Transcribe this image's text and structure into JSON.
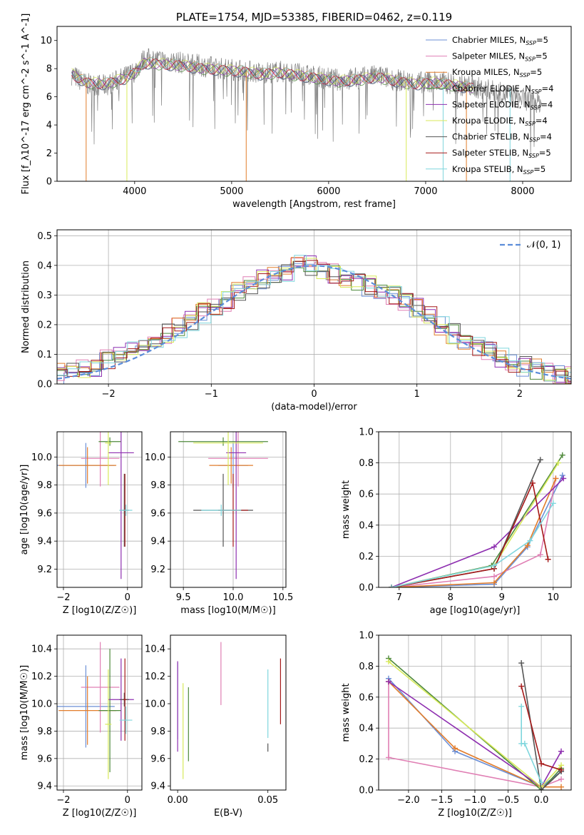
{
  "colors": {
    "chabrier_miles": "#6b8fd6",
    "salpeter_miles": "#e07fb4",
    "kroupa_miles": "#e27d2b",
    "chabrier_elodie": "#4f8a3c",
    "salpeter_elodie": "#8e2fb0",
    "kroupa_elodie": "#d8ea5a",
    "chabrier_stelib": "#555555",
    "salpeter_stelib": "#a51919",
    "kroupa_stelib": "#7fd6dd",
    "observed_spectrum": "#808080",
    "gaussian": "#5b8dd9",
    "grid": "#b0b0b0"
  },
  "chart_data": [
    {
      "id": "spectrum",
      "type": "line",
      "title": "PLATE=1754, MJD=53385, FIBERID=0462, z=0.119",
      "xlabel": "wavelength [Angstrom, rest frame]",
      "ylabel": "Flux [f_λ10^-17 erg cm^-2 s^-1 A^-1]",
      "xlim": [
        3200,
        8500
      ],
      "ylim": [
        0,
        11
      ],
      "xticks": [
        "4000",
        "5000",
        "6000",
        "7000",
        "8000"
      ],
      "yticks": [
        "0",
        "2",
        "4",
        "6",
        "8",
        "10"
      ],
      "grid": false,
      "legend_position": "top-right",
      "observed": {
        "x": [
          3350,
          3500,
          3700,
          3900,
          4000,
          4100,
          4300,
          4500,
          4700,
          4900,
          5100,
          5300,
          5500,
          5700,
          5900,
          6100,
          6300,
          6500,
          6700,
          6900,
          7100,
          7300,
          7500,
          7700,
          7900,
          8100,
          8200
        ],
        "y": [
          7.6,
          6.9,
          6.8,
          7.4,
          7.8,
          8.7,
          8.6,
          8.4,
          8.2,
          8.0,
          7.9,
          7.7,
          7.8,
          7.6,
          7.4,
          7.2,
          7.3,
          7.5,
          7.2,
          7.0,
          7.1,
          6.9,
          6.7,
          6.4,
          6.0,
          5.7,
          5.6
        ]
      },
      "series": [
        {
          "name": "Chabrier MILES, N_SSP=5",
          "color_key": "chabrier_miles"
        },
        {
          "name": "Salpeter MILES, N_SSP=5",
          "color_key": "salpeter_miles"
        },
        {
          "name": "Kroupa MILES, N_SSP=5",
          "color_key": "kroupa_miles"
        },
        {
          "name": "Chabrier ELODIE, N_SSP=4",
          "color_key": "chabrier_elodie"
        },
        {
          "name": "Salpeter ELODIE, N_SSP=4",
          "color_key": "salpeter_elodie"
        },
        {
          "name": "Kroupa ELODIE, N_SSP=4",
          "color_key": "kroupa_elodie"
        },
        {
          "name": "Chabrier STELIB, N_SSP=4",
          "color_key": "chabrier_stelib"
        },
        {
          "name": "Salpeter STELIB, N_SSP=5",
          "color_key": "salpeter_stelib"
        },
        {
          "name": "Kroupa STELIB, N_SSP=5",
          "color_key": "kroupa_stelib"
        }
      ],
      "model": {
        "x": [
          3350,
          3500,
          3700,
          3900,
          4000,
          4100,
          4300,
          4500,
          4700,
          4900,
          5100,
          5300,
          5500,
          5700,
          5900,
          6100,
          6300,
          6500,
          6700,
          6900,
          7100,
          7300,
          7500
        ],
        "y": [
          7.6,
          7.0,
          6.9,
          7.3,
          7.7,
          8.4,
          8.3,
          8.2,
          8.0,
          7.9,
          7.8,
          7.6,
          7.7,
          7.5,
          7.3,
          7.1,
          7.2,
          7.4,
          7.1,
          6.9,
          7.0,
          6.8,
          6.6
        ],
        "drops": [
          3500,
          3920,
          5150,
          6800,
          7180,
          7420,
          7870
        ]
      }
    },
    {
      "id": "residuals",
      "type": "line",
      "xlabel": "(data-model)/error",
      "ylabel": "Normed distribution",
      "xlim": [
        -2.5,
        2.5
      ],
      "ylim": [
        0,
        0.52
      ],
      "xticks": [
        "−2",
        "−1",
        "0",
        "1",
        "2"
      ],
      "yticks": [
        "0.0",
        "0.1",
        "0.2",
        "0.3",
        "0.4",
        "0.5"
      ],
      "grid": true,
      "legend_position": "top-right",
      "legend_label": "𝒩(0, 1)",
      "hist_envelope": [
        0.035,
        0.04,
        0.05,
        0.06,
        0.08,
        0.09,
        0.11,
        0.13,
        0.15,
        0.17,
        0.19,
        0.21,
        0.24,
        0.26,
        0.28,
        0.31,
        0.33,
        0.35,
        0.37,
        0.38,
        0.4,
        0.4,
        0.38,
        0.37,
        0.36,
        0.34,
        0.33,
        0.31,
        0.3,
        0.28,
        0.26,
        0.24,
        0.2,
        0.17,
        0.15,
        0.13,
        0.11,
        0.09,
        0.07,
        0.06,
        0.05,
        0.04,
        0.03,
        0.025
      ]
    },
    {
      "id": "age_vs_z",
      "type": "scatter",
      "xlabel": "Z [log10(Z/Z☉)]",
      "ylabel": "age  [log10(age/yr)]",
      "xlim": [
        -2.2,
        0.45
      ],
      "ylim": [
        9.07,
        10.18
      ],
      "xticks": [
        "−2",
        "0"
      ],
      "yticks": [
        "9.2",
        "9.4",
        "9.6",
        "9.8",
        "10.0"
      ],
      "grid": true,
      "points": [
        {
          "color_key": "chabrier_miles",
          "x": -1.3,
          "xerr": 0.9,
          "y": 9.94,
          "yerr": 0.16
        },
        {
          "color_key": "salpeter_miles",
          "x": -0.85,
          "xerr": 0.6,
          "y": 9.99,
          "yerr": 0.2
        },
        {
          "color_key": "kroupa_miles",
          "x": -1.25,
          "xerr": 0.9,
          "y": 9.94,
          "yerr": 0.13
        },
        {
          "color_key": "chabrier_elodie",
          "x": -0.55,
          "xerr": 0.35,
          "y": 10.11,
          "yerr": 0.03
        },
        {
          "color_key": "salpeter_elodie",
          "x": -0.2,
          "xerr": 0.4,
          "y": 10.03,
          "yerr": 0.9
        },
        {
          "color_key": "kroupa_elodie",
          "x": -0.6,
          "xerr": 0.1,
          "y": 10.1,
          "yerr": 0.3
        },
        {
          "color_key": "chabrier_stelib",
          "x": -0.1,
          "xerr": 0.15,
          "y": 9.62,
          "yerr": 0.26
        },
        {
          "color_key": "salpeter_stelib",
          "x": -0.08,
          "xerr": 0.05,
          "y": 9.62,
          "yerr": 0.26
        },
        {
          "color_key": "kroupa_stelib",
          "x": -0.05,
          "xerr": 0.2,
          "y": 9.62,
          "yerr": 0.04
        }
      ]
    },
    {
      "id": "age_vs_mass",
      "type": "scatter",
      "xlabel": "mass [log10(M/M☉)]",
      "ylabel": "",
      "xlim": [
        9.37,
        10.53
      ],
      "ylim": [
        9.07,
        10.18
      ],
      "xticks": [
        "9.5",
        "10.0",
        "10.5"
      ],
      "yticks": [
        "9.2",
        "9.4",
        "9.6",
        "9.8",
        "10.0"
      ],
      "grid": true,
      "points": [
        {
          "color_key": "chabrier_miles",
          "x": 10.0,
          "xerr": 0.15,
          "y": 9.94,
          "yerr": 0.16
        },
        {
          "color_key": "salpeter_miles",
          "x": 10.05,
          "xerr": 0.3,
          "y": 9.99,
          "yerr": 0.2
        },
        {
          "color_key": "kroupa_miles",
          "x": 9.98,
          "xerr": 0.22,
          "y": 9.94,
          "yerr": 0.13
        },
        {
          "color_key": "chabrier_elodie",
          "x": 9.9,
          "xerr": 0.45,
          "y": 10.11,
          "yerr": 0.03
        },
        {
          "color_key": "salpeter_elodie",
          "x": 10.03,
          "xerr": 0.1,
          "y": 10.03,
          "yerr": 0.9
        },
        {
          "color_key": "kroupa_elodie",
          "x": 9.95,
          "xerr": 0.35,
          "y": 10.1,
          "yerr": 0.3
        },
        {
          "color_key": "chabrier_stelib",
          "x": 9.9,
          "xerr": 0.3,
          "y": 9.62,
          "yerr": 0.26
        },
        {
          "color_key": "salpeter_stelib",
          "x": 10.0,
          "xerr": 0.15,
          "y": 9.62,
          "yerr": 0.26
        },
        {
          "color_key": "kroupa_stelib",
          "x": 9.88,
          "xerr": 0.2,
          "y": 9.62,
          "yerr": 0.04
        }
      ]
    },
    {
      "id": "mass_weight_vs_age",
      "type": "line",
      "xlabel": "age  [log10(age/yr)]",
      "ylabel": "mass weight",
      "xlim": [
        6.6,
        10.35
      ],
      "ylim": [
        0,
        1.0
      ],
      "xticks": [
        "7",
        "8",
        "9",
        "10"
      ],
      "yticks": [
        "0.0",
        "0.2",
        "0.4",
        "0.6",
        "0.8",
        "1.0"
      ],
      "grid": true,
      "series": [
        {
          "color_key": "chabrier_miles",
          "x": [
            6.85,
            8.85,
            9.5,
            10.18
          ],
          "y": [
            0.0,
            0.02,
            0.26,
            0.72
          ]
        },
        {
          "color_key": "salpeter_miles",
          "x": [
            6.85,
            8.85,
            9.75,
            10.05
          ],
          "y": [
            0.0,
            0.07,
            0.21,
            0.7
          ]
        },
        {
          "color_key": "kroupa_miles",
          "x": [
            6.85,
            8.85,
            9.5,
            10.05
          ],
          "y": [
            0.0,
            0.03,
            0.27,
            0.7
          ]
        },
        {
          "color_key": "chabrier_elodie",
          "x": [
            6.85,
            8.8,
            10.18
          ],
          "y": [
            0.0,
            0.14,
            0.85
          ]
        },
        {
          "color_key": "salpeter_elodie",
          "x": [
            6.85,
            8.85,
            10.2
          ],
          "y": [
            0.0,
            0.26,
            0.7
          ]
        },
        {
          "color_key": "kroupa_elodie",
          "x": [
            6.85,
            8.85,
            10.1
          ],
          "y": [
            0.0,
            0.14,
            0.8
          ]
        },
        {
          "color_key": "chabrier_stelib",
          "x": [
            6.85,
            8.85,
            9.75
          ],
          "y": [
            0.0,
            0.12,
            0.82
          ]
        },
        {
          "color_key": "salpeter_stelib",
          "x": [
            6.85,
            8.85,
            9.6,
            9.9
          ],
          "y": [
            0.0,
            0.12,
            0.67,
            0.18
          ]
        },
        {
          "color_key": "kroupa_stelib",
          "x": [
            6.85,
            8.85,
            9.55,
            10.0
          ],
          "y": [
            0.0,
            0.14,
            0.3,
            0.54
          ]
        }
      ]
    },
    {
      "id": "mass_vs_z",
      "type": "scatter",
      "xlabel": "Z [log10(Z/Z☉)]",
      "ylabel": "mass [log10(M/M☉)]",
      "xlim": [
        -2.2,
        0.45
      ],
      "ylim": [
        9.37,
        10.5
      ],
      "xticks": [
        "−2",
        "0"
      ],
      "yticks": [
        "9.4",
        "9.6",
        "9.8",
        "10.0",
        "10.2",
        "10.4"
      ],
      "grid": true,
      "points": [
        {
          "color_key": "chabrier_miles",
          "x": -1.3,
          "xerr": 0.9,
          "y": 9.98,
          "yerr": 0.3
        },
        {
          "color_key": "salpeter_miles",
          "x": -0.85,
          "xerr": 0.6,
          "y": 10.12,
          "yerr": 0.33
        },
        {
          "color_key": "kroupa_miles",
          "x": -1.25,
          "xerr": 0.9,
          "y": 9.95,
          "yerr": 0.25
        },
        {
          "color_key": "chabrier_elodie",
          "x": -0.55,
          "xerr": 0.35,
          "y": 9.95,
          "yerr": 0.45
        },
        {
          "color_key": "salpeter_elodie",
          "x": -0.2,
          "xerr": 0.4,
          "y": 10.03,
          "yerr": 0.3
        },
        {
          "color_key": "kroupa_elodie",
          "x": -0.6,
          "xerr": 0.1,
          "y": 9.85,
          "yerr": 0.4
        },
        {
          "color_key": "chabrier_stelib",
          "x": -0.1,
          "xerr": 0.15,
          "y": 10.03,
          "yerr": 0.05
        },
        {
          "color_key": "salpeter_stelib",
          "x": -0.08,
          "xerr": 0.05,
          "y": 10.03,
          "yerr": 0.3
        },
        {
          "color_key": "kroupa_stelib",
          "x": -0.05,
          "xerr": 0.2,
          "y": 9.88,
          "yerr": 0.1
        }
      ]
    },
    {
      "id": "mass_vs_ebv",
      "type": "scatter",
      "xlabel": "E(B-V)",
      "ylabel": "",
      "xlim": [
        -0.004,
        0.06
      ],
      "ylim": [
        9.37,
        10.5
      ],
      "xticks": [
        "0.00",
        "0.05"
      ],
      "yticks": [
        "9.4",
        "9.6",
        "9.8",
        "10.0",
        "10.2",
        "10.4"
      ],
      "grid": false,
      "points": [
        {
          "color_key": "chabrier_miles",
          "x": 0.0,
          "y": 10.02,
          "yerr": 0.28
        },
        {
          "color_key": "salpeter_elodie",
          "x": 0.0,
          "y": 9.98,
          "yerr": 0.33
        },
        {
          "color_key": "kroupa_elodie",
          "x": 0.003,
          "y": 9.8,
          "yerr": 0.35
        },
        {
          "color_key": "chabrier_elodie",
          "x": 0.006,
          "y": 9.85,
          "yerr": 0.27
        },
        {
          "color_key": "salpeter_miles",
          "x": 0.024,
          "y": 10.22,
          "yerr": 0.23
        },
        {
          "color_key": "kroupa_stelib",
          "x": 0.05,
          "y": 10.0,
          "yerr": 0.25
        },
        {
          "color_key": "chabrier_stelib",
          "x": 0.05,
          "y": 9.68,
          "yerr": 0.03
        },
        {
          "color_key": "salpeter_stelib",
          "x": 0.057,
          "y": 10.09,
          "yerr": 0.24
        }
      ]
    },
    {
      "id": "mass_weight_vs_z",
      "type": "line",
      "xlabel": "Z [log10(Z/Z☉)]",
      "ylabel": "mass weight",
      "xlim": [
        -2.45,
        0.45
      ],
      "ylim": [
        0,
        1.0
      ],
      "xticks": [
        "−2.0",
        "−1.5",
        "−1.0",
        "−0.5",
        "0.0"
      ],
      "yticks": [
        "0.0",
        "0.2",
        "0.4",
        "0.6",
        "0.8",
        "1.0"
      ],
      "grid": true,
      "series": [
        {
          "color_key": "chabrier_miles",
          "x": [
            -2.3,
            -1.3,
            0.0,
            0.3
          ],
          "y": [
            0.72,
            0.25,
            0.02,
            0.12
          ]
        },
        {
          "color_key": "salpeter_miles",
          "x": [
            -2.3,
            -2.3,
            0.0,
            0.3
          ],
          "y": [
            0.7,
            0.21,
            0.02,
            0.07
          ]
        },
        {
          "color_key": "kroupa_miles",
          "x": [
            -2.3,
            -1.3,
            0.0,
            0.3
          ],
          "y": [
            0.7,
            0.27,
            0.02,
            0.02
          ]
        },
        {
          "color_key": "chabrier_elodie",
          "x": [
            -2.3,
            0.0,
            0.3
          ],
          "y": [
            0.85,
            0.0,
            0.14
          ]
        },
        {
          "color_key": "salpeter_elodie",
          "x": [
            -2.3,
            0.0,
            0.3
          ],
          "y": [
            0.7,
            0.02,
            0.25
          ]
        },
        {
          "color_key": "kroupa_elodie",
          "x": [
            -2.3,
            0.0,
            0.3
          ],
          "y": [
            0.83,
            0.02,
            0.16
          ]
        },
        {
          "color_key": "chabrier_stelib",
          "x": [
            -0.3,
            0.0,
            0.3
          ],
          "y": [
            0.82,
            0.0,
            0.12
          ]
        },
        {
          "color_key": "salpeter_stelib",
          "x": [
            -0.3,
            0.0,
            0.3
          ],
          "y": [
            0.67,
            0.17,
            0.13
          ]
        },
        {
          "color_key": "kroupa_stelib",
          "x": [
            -0.3,
            -0.3,
            -0.25,
            0.0
          ],
          "y": [
            0.54,
            0.3,
            0.3,
            0.05
          ]
        }
      ]
    }
  ]
}
